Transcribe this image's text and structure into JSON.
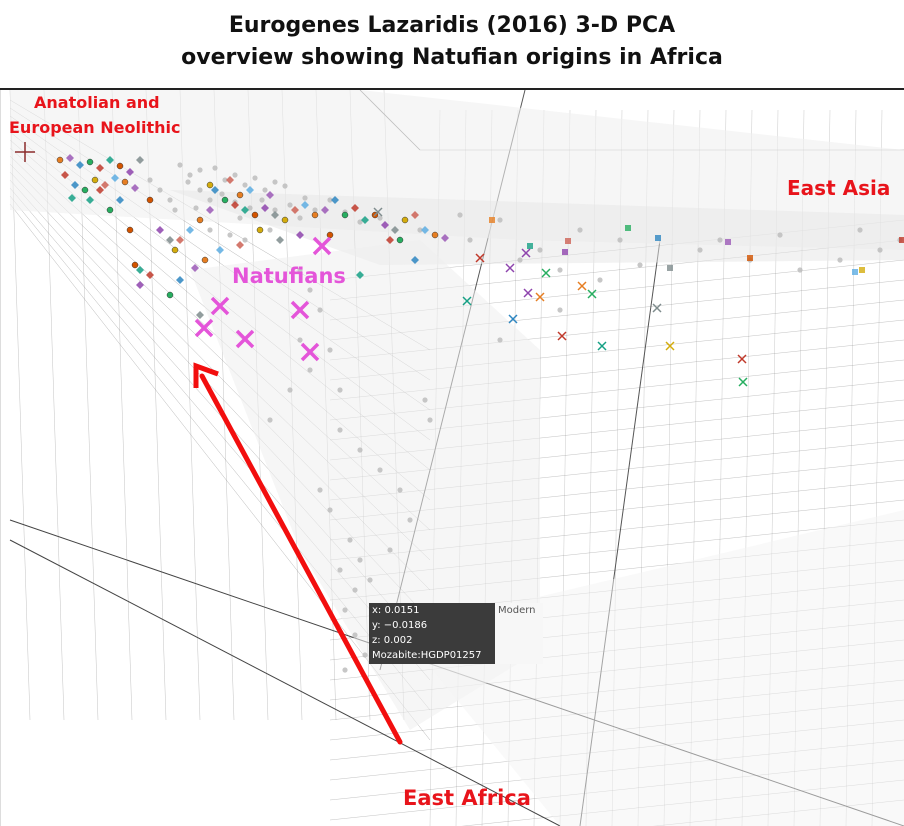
{
  "title": {
    "line1": "Eurogenes Lazaridis (2016) 3-D PCA",
    "line2": "overview showing Natufian origins in Africa"
  },
  "annotations": {
    "anatolian_line1": "Anatolian and",
    "anatolian_line2": "European Neolithic",
    "east_asia": "East Asia",
    "natufians": "Natufians",
    "east_africa": "East Africa"
  },
  "tooltip": {
    "x": "x: 0.0151",
    "y": "y: −0.0186",
    "z": "z: 0.002",
    "sample": "Mozabite:HGDP01257",
    "group": "Modern"
  },
  "colors": {
    "annotation_red": "#e8141b",
    "natufian_magenta": "#e455d9",
    "arrow": "#f20e0e",
    "grid": "#7a7a7a",
    "modern_points": "#bdbdbd"
  },
  "chart_data": {
    "type": "scatter",
    "projection": "3-D PCA",
    "axes": {
      "x": "",
      "y": "",
      "z": ""
    },
    "highlighted_point": {
      "x": 0.0151,
      "y": -0.0186,
      "z": 0.002,
      "label": "Mozabite:HGDP01257",
      "group": "Modern"
    },
    "groups": [
      {
        "name": "Anatolian and European Neolithic",
        "marker": "diamond/circle",
        "cluster": "upper-left"
      },
      {
        "name": "Natufians",
        "marker": "x",
        "color": "#e455d9",
        "cluster": "left-center"
      },
      {
        "name": "East Asia",
        "marker": "square",
        "cluster": "right"
      },
      {
        "name": "East Africa",
        "marker": "arrow origin",
        "cluster": "bottom"
      },
      {
        "name": "Modern",
        "marker": "circle",
        "color": "#bdbdbd",
        "cluster": "scattered"
      }
    ]
  }
}
